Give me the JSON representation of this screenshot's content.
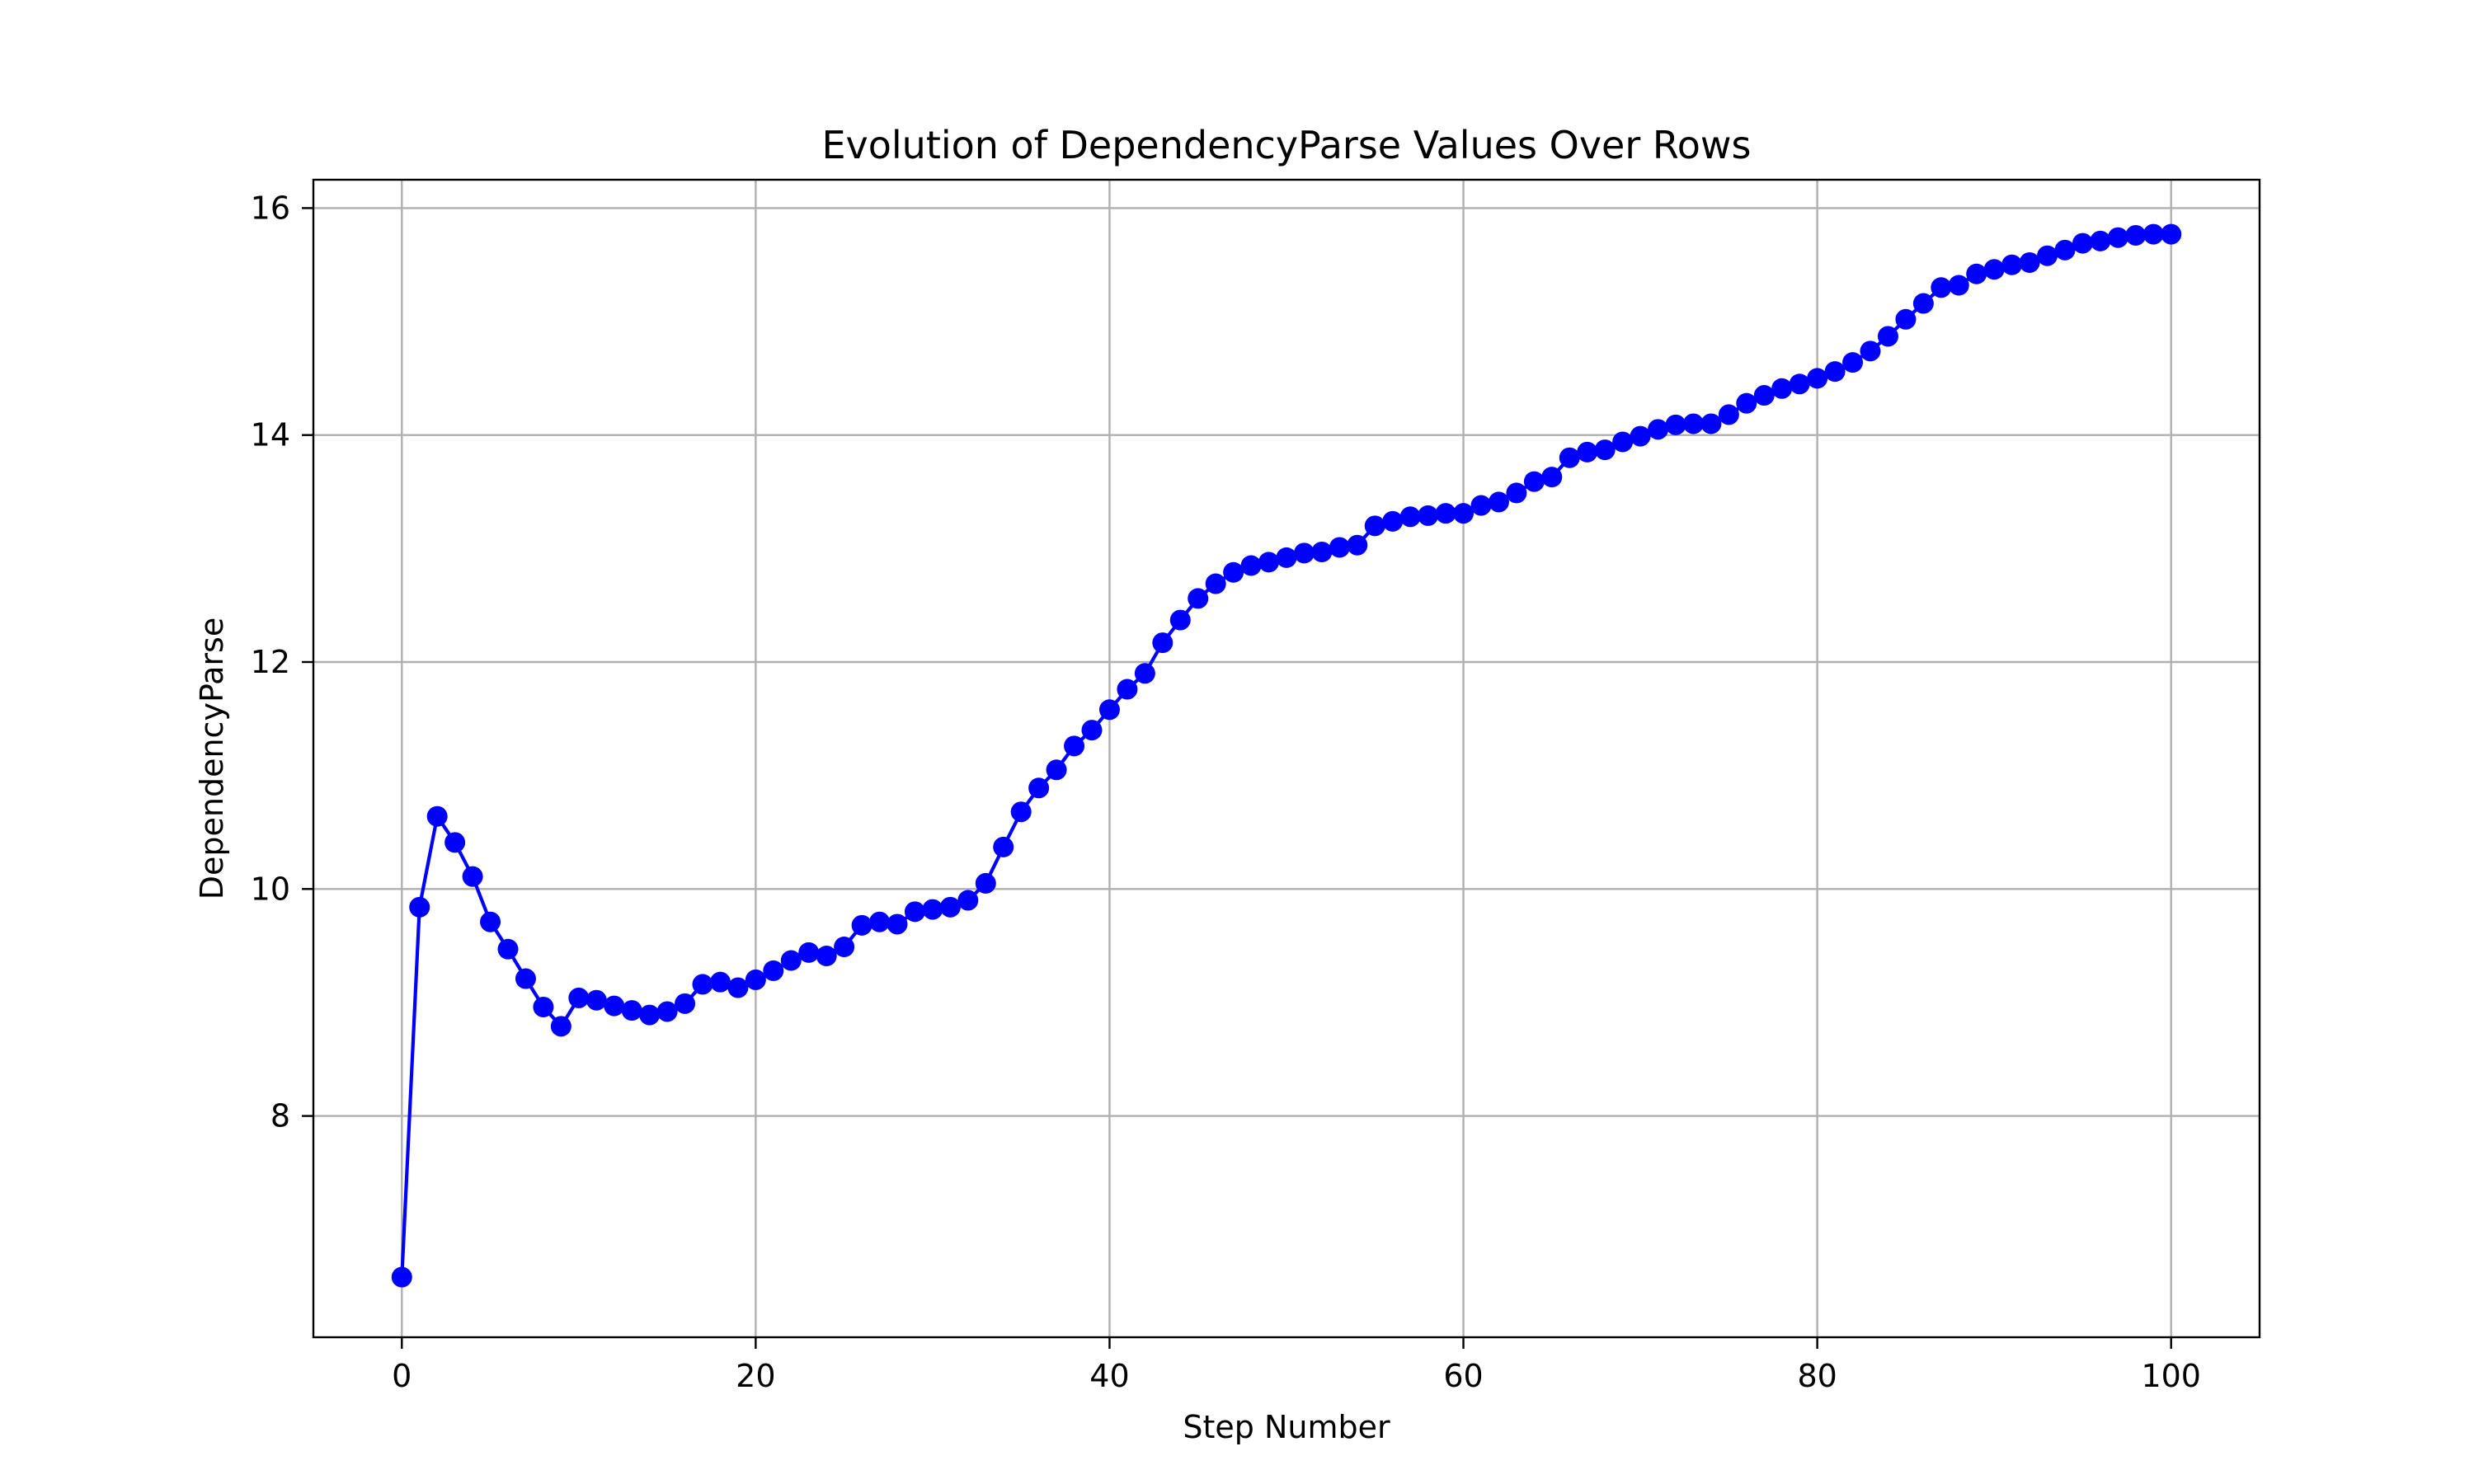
{
  "chart_data": {
    "type": "line",
    "title": "Evolution of DependencyParse Values Over Rows",
    "xlabel": "Step Number",
    "ylabel": "DependencyParse",
    "xlim": [
      -5,
      105
    ],
    "ylim": [
      6.05,
      16.25
    ],
    "xticks": [
      0,
      20,
      40,
      60,
      80,
      100
    ],
    "yticks": [
      8,
      10,
      12,
      14,
      16
    ],
    "xtick_labels": [
      "0",
      "20",
      "40",
      "60",
      "80",
      "100"
    ],
    "ytick_labels": [
      "8",
      "10",
      "12",
      "14",
      "16"
    ],
    "grid": true,
    "marker": "circle",
    "series": [
      {
        "color": "#0000ff",
        "x": [
          0,
          1,
          2,
          3,
          4,
          5,
          6,
          7,
          8,
          9,
          10,
          11,
          12,
          13,
          14,
          15,
          16,
          17,
          18,
          19,
          20,
          21,
          22,
          23,
          24,
          25,
          26,
          27,
          28,
          29,
          30,
          31,
          32,
          33,
          34,
          35,
          36,
          37,
          38,
          39,
          40,
          41,
          42,
          43,
          44,
          45,
          46,
          47,
          48,
          49,
          50,
          51,
          52,
          53,
          54,
          55,
          56,
          57,
          58,
          59,
          60,
          61,
          62,
          63,
          64,
          65,
          66,
          67,
          68,
          69,
          70,
          71,
          72,
          73,
          74,
          75,
          76,
          77,
          78,
          79,
          80,
          81,
          82,
          83,
          84,
          85,
          86,
          87,
          88,
          89,
          90,
          91,
          92,
          93,
          94,
          95,
          96,
          97,
          98,
          99,
          100
        ],
        "values": [
          6.58,
          9.84,
          10.64,
          10.41,
          10.11,
          9.71,
          9.47,
          9.21,
          8.96,
          8.79,
          9.04,
          9.02,
          8.97,
          8.93,
          8.89,
          8.92,
          8.99,
          9.16,
          9.18,
          9.13,
          9.2,
          9.28,
          9.37,
          9.44,
          9.41,
          9.49,
          9.68,
          9.71,
          9.69,
          9.8,
          9.82,
          9.84,
          9.9,
          10.05,
          10.37,
          10.68,
          10.89,
          11.05,
          11.26,
          11.4,
          11.58,
          11.76,
          11.9,
          12.17,
          12.37,
          12.56,
          12.69,
          12.79,
          12.85,
          12.88,
          12.92,
          12.96,
          12.97,
          13.01,
          13.03,
          13.2,
          13.24,
          13.28,
          13.29,
          13.31,
          13.31,
          13.38,
          13.41,
          13.49,
          13.59,
          13.63,
          13.8,
          13.85,
          13.87,
          13.94,
          13.99,
          14.05,
          14.09,
          14.1,
          14.1,
          14.18,
          14.28,
          14.35,
          14.41,
          14.45,
          14.5,
          14.56,
          14.64,
          14.74,
          14.87,
          15.02,
          15.16,
          15.3,
          15.32,
          15.42,
          15.46,
          15.5,
          15.52,
          15.58,
          15.63,
          15.69,
          15.71,
          15.74,
          15.76,
          15.77,
          15.77
        ]
      }
    ]
  }
}
